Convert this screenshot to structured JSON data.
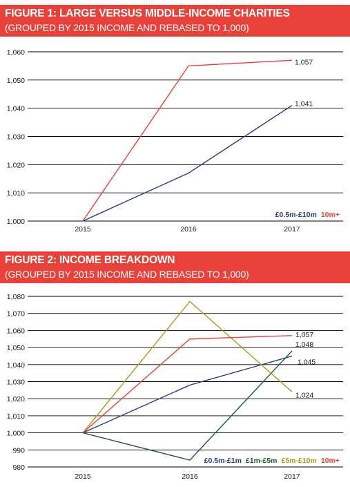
{
  "figures": [
    {
      "title": "FIGURE 1: LARGE VERSUS MIDDLE-INCOME CHARITIES",
      "subtitle": "(GROUPED BY 2015 INCOME AND REBASED TO 1,000)"
    },
    {
      "title": "FIGURE 2: INCOME BREAKDOWN",
      "subtitle": "(GROUPED BY 2015 INCOME AND REBASED TO 1,000)"
    }
  ],
  "chart_data": [
    {
      "type": "line",
      "title": "FIGURE 1: LARGE VERSUS MIDDLE-INCOME CHARITIES",
      "subtitle": "(GROUPED BY 2015 INCOME AND REBASED TO 1,000)",
      "x": [
        "2015",
        "2016",
        "2017"
      ],
      "ylim": [
        1000,
        1060
      ],
      "yticks": [
        1000,
        1010,
        1020,
        1030,
        1040,
        1050,
        1060
      ],
      "ytick_labels": [
        "1,000",
        "1,010",
        "1,020",
        "1,030",
        "1,040",
        "1,050",
        "1,060"
      ],
      "grid": "horizontal",
      "legend_position": "bottom-right",
      "series": [
        {
          "name": "£0.5m-£10m",
          "color": "#2b3a8c",
          "values": [
            1000,
            1017,
            1041
          ],
          "end_label": "1,041"
        },
        {
          "name": "10m+",
          "color": "#e8413a",
          "values": [
            1000,
            1055,
            1057
          ],
          "end_label": "1,057"
        }
      ]
    },
    {
      "type": "line",
      "title": "FIGURE 2: INCOME BREAKDOWN",
      "subtitle": "(GROUPED BY 2015 INCOME AND REBASED TO 1,000)",
      "x": [
        "2015",
        "2016",
        "2017"
      ],
      "ylim": [
        980,
        1080
      ],
      "yticks": [
        980,
        990,
        1000,
        1010,
        1020,
        1030,
        1040,
        1050,
        1060,
        1070,
        1080
      ],
      "ytick_labels": [
        "980",
        "990",
        "1,000",
        "1,010",
        "1,020",
        "1,030",
        "1,040",
        "1,050",
        "1,060",
        "1,070",
        "1,080"
      ],
      "grid": "horizontal",
      "legend_position": "bottom-right",
      "series": [
        {
          "name": "£0.5m-£1m",
          "color": "#2b3a8c",
          "values": [
            1000,
            1028,
            1045
          ],
          "end_label": "1,045"
        },
        {
          "name": "£1m-£5m",
          "color": "#1f5a2e",
          "values": [
            1000,
            984,
            1048
          ],
          "end_label": "1,048"
        },
        {
          "name": "£5m-£10m",
          "color": "#a89a1a",
          "values": [
            1000,
            1077,
            1024
          ],
          "end_label": "1,024"
        },
        {
          "name": "10m+",
          "color": "#e8413a",
          "values": [
            1000,
            1055,
            1057
          ],
          "end_label": "1,057"
        }
      ]
    }
  ]
}
